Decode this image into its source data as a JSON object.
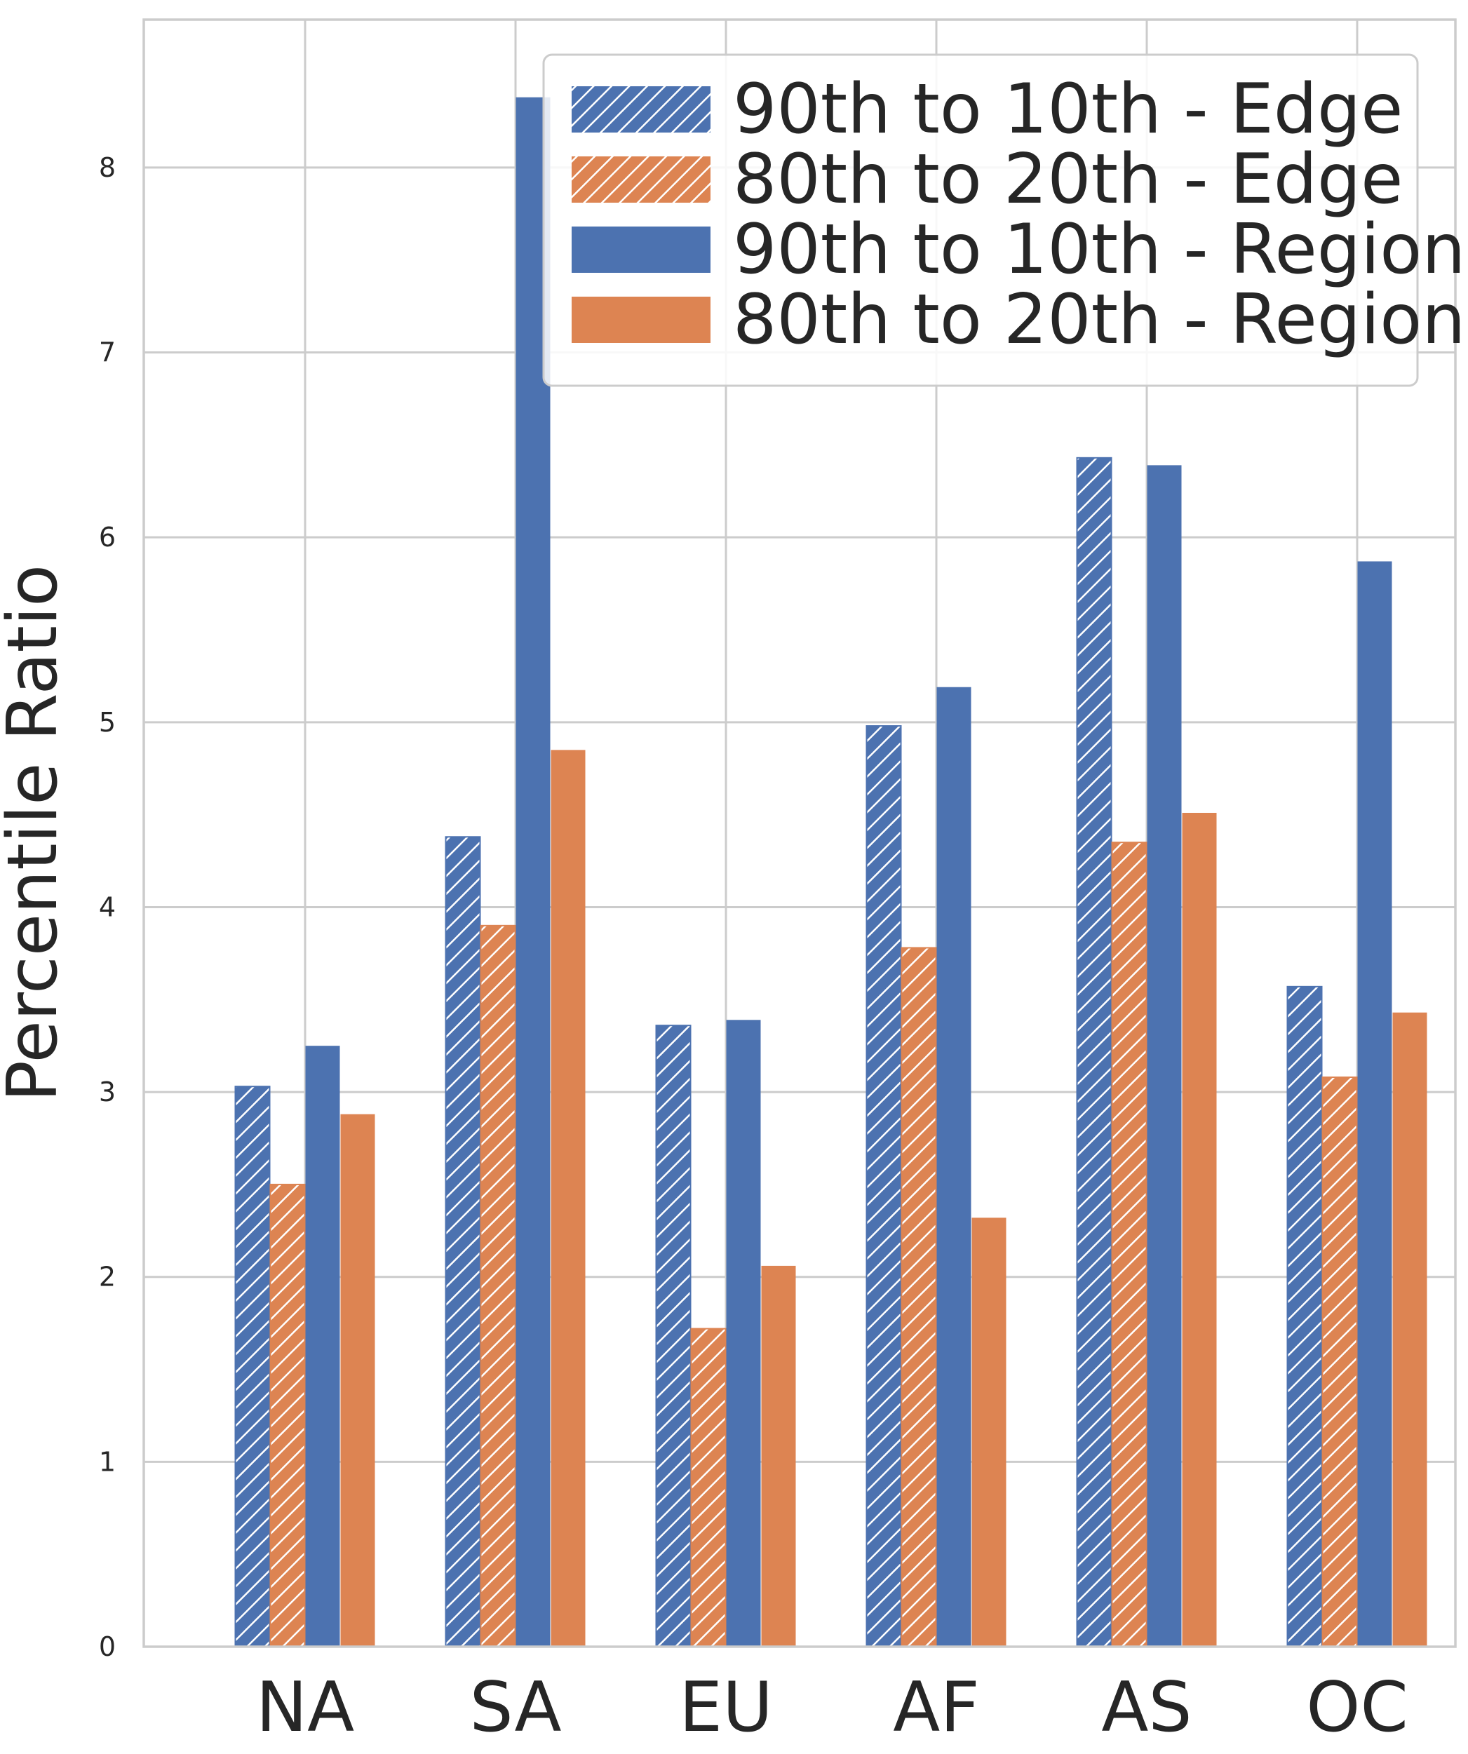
{
  "chart_data": {
    "type": "bar",
    "title": "",
    "xlabel": "",
    "ylabel": "Percentile Ratio",
    "ylim": [
      0,
      8.8
    ],
    "yticks": [
      "0",
      "1",
      "2",
      "3",
      "4",
      "5",
      "6",
      "7",
      "8"
    ],
    "grid": true,
    "legend_position": "top-right",
    "categories": [
      "NA",
      "SA",
      "EU",
      "AF",
      "AS",
      "OC"
    ],
    "series": [
      {
        "name": "90th to 10th - Edge",
        "color": "#4c72b0",
        "pattern": "hatched",
        "values": [
          3.03,
          4.38,
          3.36,
          4.98,
          6.43,
          3.57
        ]
      },
      {
        "name": "80th to 20th - Edge",
        "color": "#dd8452",
        "pattern": "hatched",
        "values": [
          2.5,
          3.9,
          1.72,
          3.78,
          4.35,
          3.08
        ]
      },
      {
        "name": "90th to 10th - Region",
        "color": "#4c72b0",
        "pattern": "solid",
        "values": [
          3.25,
          8.38,
          3.39,
          5.19,
          6.39,
          5.87
        ]
      },
      {
        "name": "80th to 20th - Region",
        "color": "#dd8452",
        "pattern": "solid",
        "values": [
          2.88,
          4.85,
          2.06,
          2.32,
          4.51,
          3.43
        ]
      }
    ]
  }
}
